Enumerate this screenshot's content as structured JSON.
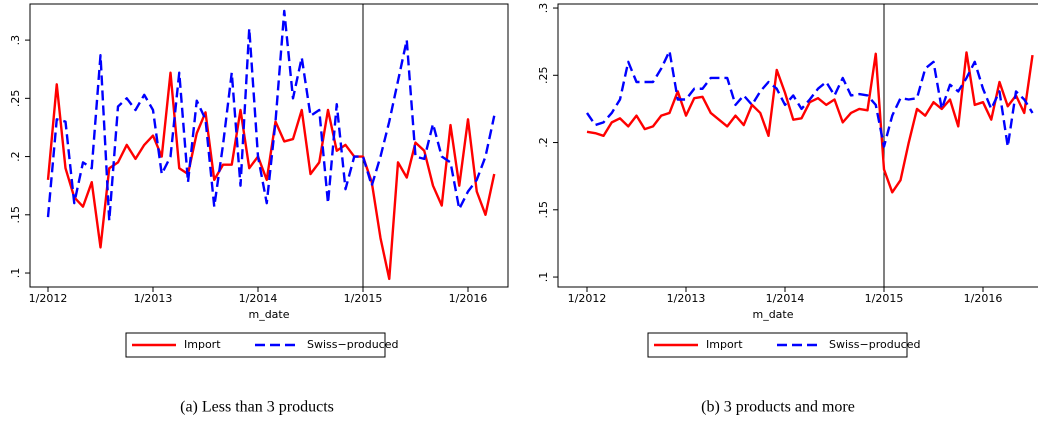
{
  "chart_data": [
    {
      "type": "line",
      "title": "(a) Less than 3 products",
      "x_label": "m_date",
      "x": [
        "1/2012",
        "2/2012",
        "3/2012",
        "4/2012",
        "5/2012",
        "6/2012",
        "7/2012",
        "8/2012",
        "9/2012",
        "10/2012",
        "11/2012",
        "12/2012",
        "1/2013",
        "2/2013",
        "3/2013",
        "4/2013",
        "5/2013",
        "6/2013",
        "7/2013",
        "8/2013",
        "9/2013",
        "10/2013",
        "11/2013",
        "12/2013",
        "1/2014",
        "2/2014",
        "3/2014",
        "4/2014",
        "5/2014",
        "6/2014",
        "7/2014",
        "8/2014",
        "9/2014",
        "10/2014",
        "11/2014",
        "12/2014",
        "1/2015",
        "2/2015",
        "3/2015",
        "4/2015",
        "5/2015",
        "6/2015",
        "7/2015",
        "8/2015",
        "9/2015",
        "10/2015",
        "11/2015",
        "12/2015",
        "1/2016",
        "2/2016",
        "3/2016",
        "4/2016"
      ],
      "xticks": [
        "1/2012",
        "1/2013",
        "1/2014",
        "1/2015",
        "1/2016"
      ],
      "vline": "1/2015",
      "ylim": [
        0.088,
        0.331
      ],
      "yticks": [
        {
          "value": 0.1,
          "label": ".1"
        },
        {
          "value": 0.15,
          "label": ".15"
        },
        {
          "value": 0.2,
          "label": ".2"
        },
        {
          "value": 0.25,
          "label": ".25"
        },
        {
          "value": 0.3,
          "label": ".3"
        }
      ],
      "legend": "bottom",
      "series": [
        {
          "name": "Import",
          "color": "#ff0000",
          "values": [
            0.18,
            0.262,
            0.19,
            0.165,
            0.157,
            0.178,
            0.122,
            0.19,
            0.195,
            0.21,
            0.198,
            0.21,
            0.218,
            0.2,
            0.272,
            0.19,
            0.185,
            0.22,
            0.238,
            0.18,
            0.193,
            0.193,
            0.24,
            0.19,
            0.2,
            0.18,
            0.23,
            0.213,
            0.215,
            0.24,
            0.185,
            0.195,
            0.24,
            0.205,
            0.21,
            0.2,
            0.2,
            0.178,
            0.13,
            0.095,
            0.195,
            0.182,
            0.212,
            0.205,
            0.175,
            0.158,
            0.227,
            0.175,
            0.232,
            0.17,
            0.15,
            0.185
          ]
        },
        {
          "name": "Swiss−produced",
          "color": "#0000ff",
          "dashed": true,
          "values": [
            0.148,
            0.232,
            0.23,
            0.16,
            0.195,
            0.19,
            0.287,
            0.145,
            0.243,
            0.25,
            0.24,
            0.253,
            0.24,
            0.185,
            0.2,
            0.272,
            0.178,
            0.248,
            0.232,
            0.157,
            0.21,
            0.272,
            0.175,
            0.31,
            0.2,
            0.16,
            0.23,
            0.325,
            0.25,
            0.285,
            0.235,
            0.24,
            0.16,
            0.245,
            0.172,
            0.2,
            0.2,
            0.175,
            0.2,
            0.23,
            0.265,
            0.3,
            0.2,
            0.198,
            0.228,
            0.2,
            0.195,
            0.155,
            0.17,
            0.18,
            0.2,
            0.235
          ]
        }
      ]
    },
    {
      "type": "line",
      "title": "(b) 3 products and more",
      "x_label": "m_date",
      "x": [
        "1/2012",
        "2/2012",
        "3/2012",
        "4/2012",
        "5/2012",
        "6/2012",
        "7/2012",
        "8/2012",
        "9/2012",
        "10/2012",
        "11/2012",
        "12/2012",
        "1/2013",
        "2/2013",
        "3/2013",
        "4/2013",
        "5/2013",
        "6/2013",
        "7/2013",
        "8/2013",
        "9/2013",
        "10/2013",
        "11/2013",
        "12/2013",
        "1/2014",
        "2/2014",
        "3/2014",
        "4/2014",
        "5/2014",
        "6/2014",
        "7/2014",
        "8/2014",
        "9/2014",
        "10/2014",
        "11/2014",
        "12/2014",
        "1/2015",
        "2/2015",
        "3/2015",
        "4/2015",
        "5/2015",
        "6/2015",
        "7/2015",
        "8/2015",
        "9/2015",
        "10/2015",
        "11/2015",
        "12/2015",
        "1/2016",
        "2/2016",
        "3/2016",
        "4/2016",
        "5/2016",
        "6/2016",
        "7/2016"
      ],
      "xticks": [
        "1/2012",
        "1/2013",
        "1/2014",
        "1/2015",
        "1/2016"
      ],
      "vline": "1/2015",
      "ylim": [
        0.0926,
        0.303
      ],
      "yticks": [
        {
          "value": 0.1,
          "label": ".1"
        },
        {
          "value": 0.15,
          "label": ".15"
        },
        {
          "value": 0.2,
          "label": ".2"
        },
        {
          "value": 0.25,
          "label": ".25"
        },
        {
          "value": 0.3,
          "label": ".3"
        }
      ],
      "legend": "bottom",
      "series": [
        {
          "name": "Import",
          "color": "#ff0000",
          "values": [
            0.208,
            0.207,
            0.205,
            0.215,
            0.218,
            0.212,
            0.22,
            0.21,
            0.212,
            0.22,
            0.222,
            0.238,
            0.22,
            0.233,
            0.234,
            0.222,
            0.217,
            0.212,
            0.22,
            0.213,
            0.228,
            0.222,
            0.205,
            0.254,
            0.237,
            0.217,
            0.218,
            0.23,
            0.233,
            0.228,
            0.232,
            0.215,
            0.222,
            0.225,
            0.224,
            0.266,
            0.18,
            0.163,
            0.172,
            0.2,
            0.225,
            0.22,
            0.23,
            0.225,
            0.232,
            0.212,
            0.267,
            0.228,
            0.23,
            0.217,
            0.245,
            0.227,
            0.235,
            0.222,
            0.265
          ]
        },
        {
          "name": "Swiss−produced",
          "color": "#0000ff",
          "dashed": true,
          "values": [
            0.222,
            0.213,
            0.215,
            0.222,
            0.232,
            0.26,
            0.245,
            0.245,
            0.245,
            0.255,
            0.268,
            0.232,
            0.232,
            0.24,
            0.24,
            0.248,
            0.248,
            0.248,
            0.228,
            0.235,
            0.228,
            0.238,
            0.245,
            0.24,
            0.228,
            0.235,
            0.225,
            0.232,
            0.24,
            0.245,
            0.235,
            0.248,
            0.235,
            0.236,
            0.235,
            0.228,
            0.197,
            0.22,
            0.233,
            0.232,
            0.233,
            0.255,
            0.26,
            0.225,
            0.243,
            0.238,
            0.248,
            0.26,
            0.24,
            0.225,
            0.238,
            0.197,
            0.238,
            0.232,
            0.222
          ]
        }
      ]
    }
  ]
}
